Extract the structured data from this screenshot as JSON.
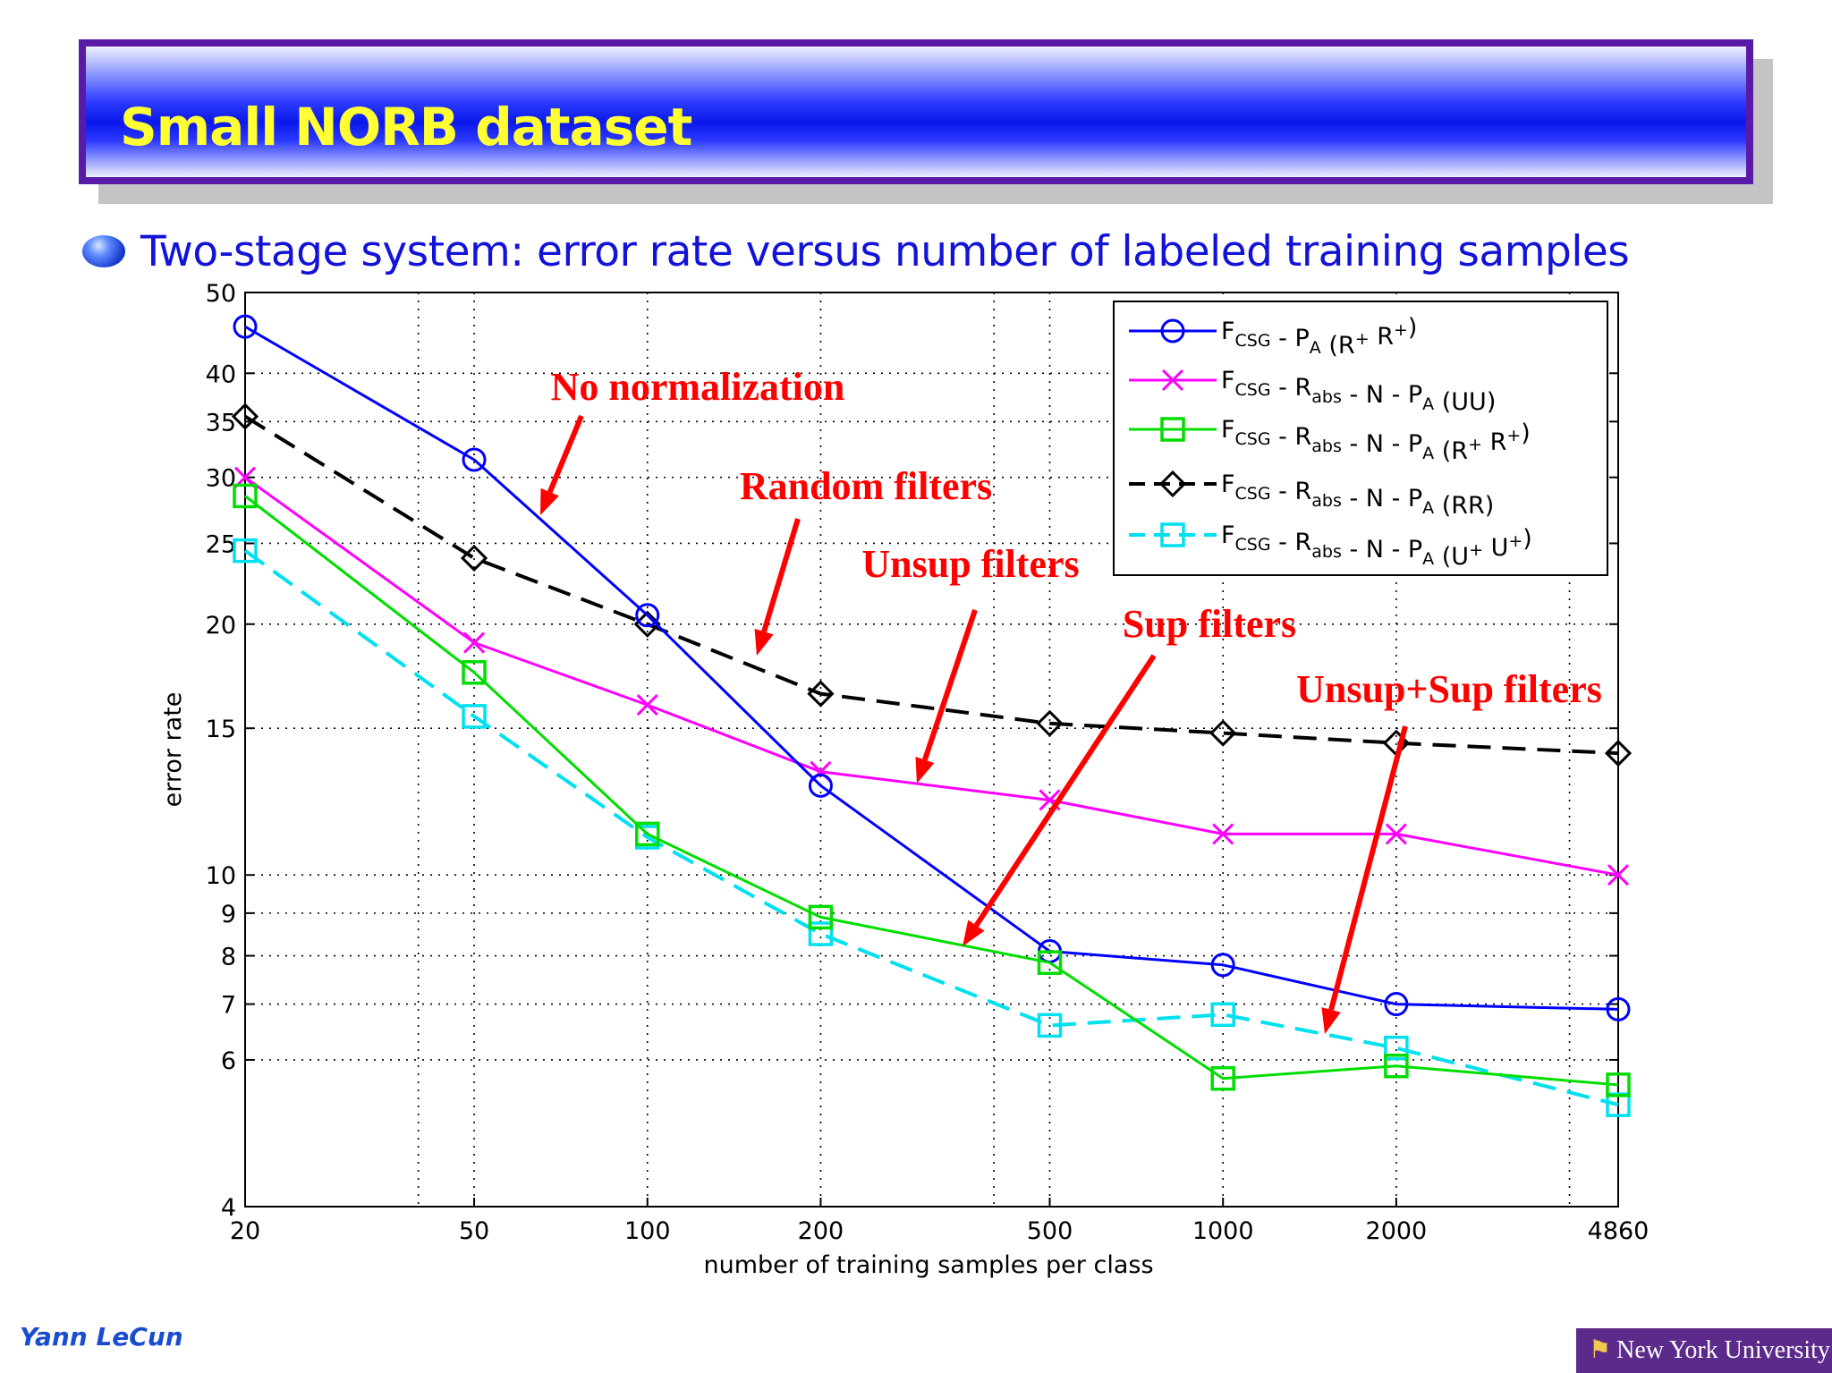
{
  "slide": {
    "title": "Small NORB dataset",
    "subtitle": "Two-stage system: error rate versus number of labeled training samples",
    "author": "Yann LeCun",
    "logo_text": "New York University",
    "colors": {
      "title_bar": "#1a28f0",
      "title_text": "#ffff33",
      "subtitle": "#1212d8",
      "annotation": "#ff0000"
    }
  },
  "chart_data": {
    "type": "line",
    "xscale": "log",
    "yscale": "log",
    "xlabel": "number of training samples per class",
    "ylabel": "error rate",
    "xlim": [
      20,
      4860
    ],
    "ylim": [
      4,
      50
    ],
    "x": [
      20,
      50,
      100,
      200,
      500,
      1000,
      2000,
      4860
    ],
    "x_ticks": [
      20,
      50,
      100,
      200,
      500,
      1000,
      2000,
      4860
    ],
    "y_ticks": [
      4,
      6,
      7,
      8,
      9,
      10,
      15,
      20,
      25,
      30,
      35,
      40,
      50
    ],
    "grid": true,
    "legend_position": "top-right",
    "series": [
      {
        "name": "F_CSG - P_A (R+ R+)",
        "color": "#0000ff",
        "marker": "circle",
        "dash": "solid",
        "values": [
          45.5,
          31.5,
          20.5,
          12.8,
          8.1,
          7.8,
          7.0,
          6.9
        ]
      },
      {
        "name": "F_CSG - R_abs - N - P_A (UU)",
        "color": "#ff00ff",
        "marker": "x",
        "dash": "solid",
        "values": [
          30.0,
          19.0,
          16.0,
          13.3,
          12.3,
          11.2,
          11.2,
          10.0
        ]
      },
      {
        "name": "F_CSG - R_abs - N - P_A (R+ R+)",
        "color": "#00dd00",
        "marker": "square",
        "dash": "solid",
        "values": [
          28.5,
          17.5,
          11.2,
          8.9,
          7.85,
          5.7,
          5.9,
          5.6
        ]
      },
      {
        "name": "F_CSG - R_abs - N - P_A (RR)",
        "color": "#000000",
        "marker": "diamond",
        "dash": "dashed",
        "values": [
          35.5,
          24.0,
          20.0,
          16.5,
          15.2,
          14.8,
          14.4,
          14.0
        ]
      },
      {
        "name": "F_CSG - R_abs - N - P_A (U+ U+)",
        "color": "#00e0ee",
        "marker": "square",
        "dash": "dashed",
        "values": [
          24.5,
          15.5,
          11.1,
          8.5,
          6.6,
          6.8,
          6.2,
          5.3
        ]
      }
    ],
    "annotations": [
      "No normalization",
      "Random filters",
      "Unsup filters",
      "Sup filters",
      "Unsup+Sup filters"
    ]
  }
}
